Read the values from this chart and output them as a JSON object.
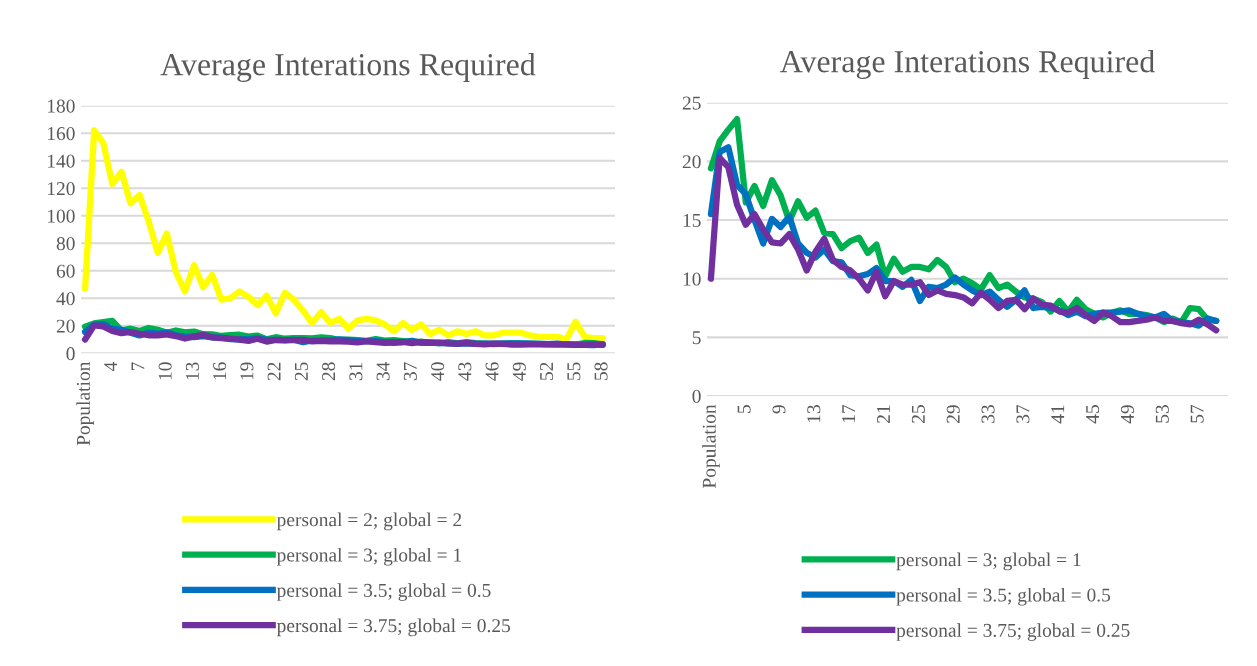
{
  "chart_data": [
    {
      "type": "line",
      "title": "Average Interations Required",
      "categories": [
        "Population",
        null,
        null,
        "4",
        null,
        null,
        "7",
        null,
        null,
        "10",
        null,
        null,
        "13",
        null,
        null,
        "16",
        null,
        null,
        "19",
        null,
        null,
        "22",
        null,
        null,
        "25",
        null,
        null,
        "28",
        null,
        null,
        "31",
        null,
        null,
        "34",
        null,
        null,
        "37",
        null,
        null,
        "40",
        null,
        null,
        "43",
        null,
        null,
        "46",
        null,
        null,
        "49",
        null,
        null,
        "52",
        null,
        null,
        "55",
        null,
        null,
        "58"
      ],
      "series": [
        {
          "name": "personal = 2; global = 2",
          "color": "#ffff00",
          "values": [
            47,
            162,
            153,
            123,
            132,
            109,
            115,
            96,
            73,
            87,
            59,
            45,
            64,
            48,
            57,
            39,
            40,
            45,
            41,
            35,
            42,
            29,
            44,
            39,
            31,
            22,
            30,
            22,
            25,
            18,
            24,
            25,
            24,
            21,
            16,
            22,
            17,
            21,
            14,
            17,
            13,
            16,
            14,
            16,
            13,
            13,
            15,
            15,
            15,
            13,
            12,
            12,
            12,
            10,
            23,
            12,
            11,
            11
          ]
        },
        {
          "name": "personal = 3; global = 1",
          "color": "#00b050",
          "values": [
            19.4,
            21.7,
            22.7,
            23.6,
            16.5,
            17.9,
            16.2,
            18.4,
            17.1,
            14.9,
            16.6,
            15.2,
            15.8,
            13.9,
            13.8,
            12.6,
            13.2,
            13.5,
            12.2,
            12.9,
            10.2,
            11.7,
            10.6,
            11.0,
            11.0,
            10.8,
            11.6,
            11.0,
            9.7,
            10.0,
            9.6,
            9.1,
            10.3,
            9.2,
            9.5,
            8.9,
            8.4,
            8.3,
            8.0,
            7.2,
            8.1,
            7.2,
            8.2,
            7.4,
            7.0,
            6.7,
            7.1,
            7.3,
            7.0,
            7.0,
            6.9,
            6.7,
            6.3,
            6.6,
            6.3,
            7.5,
            7.4,
            6.5
          ]
        },
        {
          "name": "personal = 3.5; global = 0.5",
          "color": "#0070c0",
          "values": [
            15.5,
            20.8,
            21.2,
            18.0,
            17.2,
            15.0,
            13.0,
            15.1,
            14.4,
            15.3,
            13.0,
            12.2,
            11.8,
            12.5,
            11.5,
            11.4,
            10.3,
            10.2,
            10.4,
            10.9,
            9.8,
            9.8,
            9.3,
            9.9,
            8.1,
            9.3,
            9.2,
            9.5,
            10.1,
            9.5,
            9.0,
            8.6,
            8.9,
            8.2,
            7.6,
            8.2,
            9.0,
            7.5,
            7.6,
            7.5,
            7.3,
            6.9,
            7.2,
            6.8,
            7.0,
            7.1,
            7.1,
            7.2,
            7.3,
            7.0,
            6.8,
            6.7,
            7.0,
            6.4,
            6.3,
            6.2,
            6.0,
            6.6
          ]
        },
        {
          "name": "personal = 3.75; global = 0.25",
          "color": "#7030a0",
          "values": [
            10.0,
            20.3,
            19.5,
            16.3,
            14.6,
            15.5,
            14.2,
            13.1,
            13.0,
            13.8,
            12.5,
            10.7,
            12.3,
            13.4,
            11.6,
            11.0,
            10.7,
            10.0,
            9.0,
            10.6,
            8.5,
            9.8,
            9.5,
            9.5,
            9.7,
            8.6,
            9.0,
            8.7,
            8.6,
            8.4,
            7.9,
            8.8,
            8.2,
            7.5,
            8.1,
            8.2,
            7.4,
            8.3,
            7.8,
            7.7,
            7.2,
            7.1,
            7.5,
            6.9,
            6.4,
            7.1,
            6.8,
            6.3,
            6.3,
            6.4,
            6.5,
            6.7,
            6.4,
            6.4,
            6.2,
            6.1,
            6.5,
            6.1
          ]
        }
      ],
      "ylim": [
        0,
        180
      ],
      "yticks": [
        0,
        20,
        40,
        60,
        80,
        100,
        120,
        140,
        160,
        180
      ],
      "grid": "y",
      "legend": "bottom",
      "line_style": "solid"
    },
    {
      "type": "line",
      "title": "Average Interations Required",
      "categories": [
        "Population",
        null,
        null,
        null,
        "5",
        null,
        null,
        null,
        "9",
        null,
        null,
        null,
        "13",
        null,
        null,
        null,
        "17",
        null,
        null,
        null,
        "21",
        null,
        null,
        null,
        "25",
        null,
        null,
        null,
        "29",
        null,
        null,
        null,
        "33",
        null,
        null,
        null,
        "37",
        null,
        null,
        null,
        "41",
        null,
        null,
        null,
        "45",
        null,
        null,
        null,
        "49",
        null,
        null,
        null,
        "53",
        null,
        null,
        null,
        "57",
        null,
        null
      ],
      "series": [
        {
          "name": "personal = 3; global = 1",
          "color": "#00b050",
          "values": [
            19.4,
            21.7,
            22.7,
            23.6,
            16.5,
            17.9,
            16.2,
            18.4,
            17.1,
            14.9,
            16.6,
            15.2,
            15.8,
            13.9,
            13.8,
            12.6,
            13.2,
            13.5,
            12.2,
            12.9,
            10.2,
            11.7,
            10.6,
            11.0,
            11.0,
            10.8,
            11.6,
            11.0,
            9.7,
            10.0,
            9.6,
            9.1,
            10.3,
            9.2,
            9.5,
            8.9,
            8.4,
            8.3,
            8.0,
            7.2,
            8.1,
            7.2,
            8.2,
            7.4,
            7.0,
            6.7,
            7.1,
            7.3,
            7.0,
            7.0,
            6.9,
            6.7,
            6.3,
            6.6,
            6.3,
            7.5,
            7.4,
            6.5,
            6.4
          ]
        },
        {
          "name": "personal = 3.5; global = 0.5",
          "color": "#0070c0",
          "values": [
            15.5,
            20.8,
            21.2,
            18.0,
            17.2,
            15.0,
            13.0,
            15.1,
            14.4,
            15.3,
            13.0,
            12.2,
            11.8,
            12.5,
            11.5,
            11.4,
            10.3,
            10.2,
            10.4,
            10.9,
            9.8,
            9.8,
            9.3,
            9.9,
            8.1,
            9.3,
            9.2,
            9.5,
            10.1,
            9.5,
            9.0,
            8.6,
            8.9,
            8.2,
            7.6,
            8.2,
            9.0,
            7.5,
            7.6,
            7.5,
            7.3,
            6.9,
            7.2,
            6.8,
            7.0,
            7.1,
            7.1,
            7.2,
            7.3,
            7.0,
            6.8,
            6.7,
            7.0,
            6.4,
            6.3,
            6.2,
            6.0,
            6.6,
            6.4
          ]
        },
        {
          "name": "personal = 3.75; global = 0.25",
          "color": "#7030a0",
          "values": [
            10.0,
            20.3,
            19.5,
            16.3,
            14.6,
            15.5,
            14.2,
            13.1,
            13.0,
            13.8,
            12.5,
            10.7,
            12.3,
            13.4,
            11.6,
            11.0,
            10.7,
            10.0,
            9.0,
            10.6,
            8.5,
            9.8,
            9.5,
            9.5,
            9.7,
            8.6,
            9.0,
            8.7,
            8.6,
            8.4,
            7.9,
            8.8,
            8.2,
            7.5,
            8.1,
            8.2,
            7.4,
            8.3,
            7.8,
            7.7,
            7.2,
            7.1,
            7.5,
            6.9,
            6.4,
            7.1,
            6.8,
            6.3,
            6.3,
            6.4,
            6.5,
            6.7,
            6.4,
            6.4,
            6.2,
            6.1,
            6.5,
            6.1,
            5.6
          ]
        }
      ],
      "ylim": [
        0,
        25
      ],
      "yticks": [
        0,
        5,
        10,
        15,
        20,
        25
      ],
      "grid": "y",
      "legend": "bottom",
      "line_style": "solid"
    }
  ]
}
